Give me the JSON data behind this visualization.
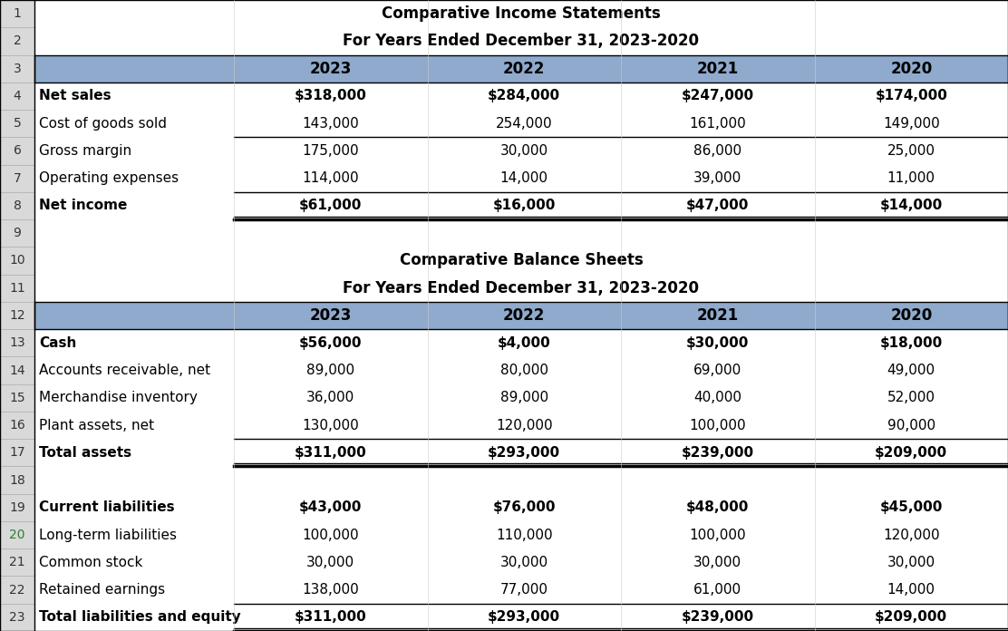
{
  "header_bg_color": "#8FAACC",
  "rn_bg_color": "#D9D9D9",
  "white_bg": "#FFFFFF",
  "years": [
    "2023",
    "2022",
    "2021",
    "2020"
  ],
  "income_title1": "Comparative Income Statements",
  "income_title2": "For Years Ended December 31, 2023-2020",
  "balance_title1": "Comparative Balance Sheets",
  "balance_title2": "For Years Ended December 31, 2023-2020",
  "rows": [
    {
      "num": "1",
      "label": "",
      "vals": [
        "",
        "",
        "",
        ""
      ],
      "style": "title1_income"
    },
    {
      "num": "2",
      "label": "",
      "vals": [
        "",
        "",
        "",
        ""
      ],
      "style": "title2_income"
    },
    {
      "num": "3",
      "label": "",
      "vals": [
        "2023",
        "2022",
        "2021",
        "2020"
      ],
      "style": "header"
    },
    {
      "num": "4",
      "label": "Net sales",
      "vals": [
        "$318,000",
        "$284,000",
        "$247,000",
        "$174,000"
      ],
      "style": "bold_dollar"
    },
    {
      "num": "5",
      "label": "Cost of goods sold",
      "vals": [
        "143,000",
        "254,000",
        "161,000",
        "149,000"
      ],
      "style": "normal_line"
    },
    {
      "num": "6",
      "label": "Gross margin",
      "vals": [
        "175,000",
        "30,000",
        "86,000",
        "25,000"
      ],
      "style": "normal"
    },
    {
      "num": "7",
      "label": "Operating expenses",
      "vals": [
        "114,000",
        "14,000",
        "39,000",
        "11,000"
      ],
      "style": "normal_line"
    },
    {
      "num": "8",
      "label": "Net income",
      "vals": [
        "$61,000",
        "$16,000",
        "$47,000",
        "$14,000"
      ],
      "style": "bold_dollar_dbl"
    },
    {
      "num": "9",
      "label": "",
      "vals": [
        "",
        "",
        "",
        ""
      ],
      "style": "blank"
    },
    {
      "num": "10",
      "label": "",
      "vals": [
        "",
        "",
        "",
        ""
      ],
      "style": "title1_balance"
    },
    {
      "num": "11",
      "label": "",
      "vals": [
        "",
        "",
        "",
        ""
      ],
      "style": "title2_balance"
    },
    {
      "num": "12",
      "label": "",
      "vals": [
        "2023",
        "2022",
        "2021",
        "2020"
      ],
      "style": "header"
    },
    {
      "num": "13",
      "label": "Cash",
      "vals": [
        "$56,000",
        "$4,000",
        "$30,000",
        "$18,000"
      ],
      "style": "bold_dollar"
    },
    {
      "num": "14",
      "label": "Accounts receivable, net",
      "vals": [
        "89,000",
        "80,000",
        "69,000",
        "49,000"
      ],
      "style": "normal"
    },
    {
      "num": "15",
      "label": "Merchandise inventory",
      "vals": [
        "36,000",
        "89,000",
        "40,000",
        "52,000"
      ],
      "style": "normal"
    },
    {
      "num": "16",
      "label": "Plant assets, net",
      "vals": [
        "130,000",
        "120,000",
        "100,000",
        "90,000"
      ],
      "style": "normal_line"
    },
    {
      "num": "17",
      "label": "Total assets",
      "vals": [
        "$311,000",
        "$293,000",
        "$239,000",
        "$209,000"
      ],
      "style": "bold_dollar_dbl"
    },
    {
      "num": "18",
      "label": "",
      "vals": [
        "",
        "",
        "",
        ""
      ],
      "style": "blank"
    },
    {
      "num": "19",
      "label": "Current liabilities",
      "vals": [
        "$43,000",
        "$76,000",
        "$48,000",
        "$45,000"
      ],
      "style": "bold_dollar"
    },
    {
      "num": "20",
      "label": "Long-term liabilities",
      "vals": [
        "100,000",
        "110,000",
        "100,000",
        "120,000"
      ],
      "style": "normal"
    },
    {
      "num": "21",
      "label": "Common stock",
      "vals": [
        "30,000",
        "30,000",
        "30,000",
        "30,000"
      ],
      "style": "normal"
    },
    {
      "num": "22",
      "label": "Retained earnings",
      "vals": [
        "138,000",
        "77,000",
        "61,000",
        "14,000"
      ],
      "style": "normal_line"
    },
    {
      "num": "23",
      "label": "Total liabilities and equity",
      "vals": [
        "$311,000",
        "$293,000",
        "$239,000",
        "$209,000"
      ],
      "style": "bold_dollar_dbl"
    }
  ],
  "font_size": 11,
  "header_font_size": 12,
  "title_font_size": 12,
  "rn_font_size": 10,
  "fig_width": 11.12,
  "fig_height": 6.96,
  "dpi": 100
}
